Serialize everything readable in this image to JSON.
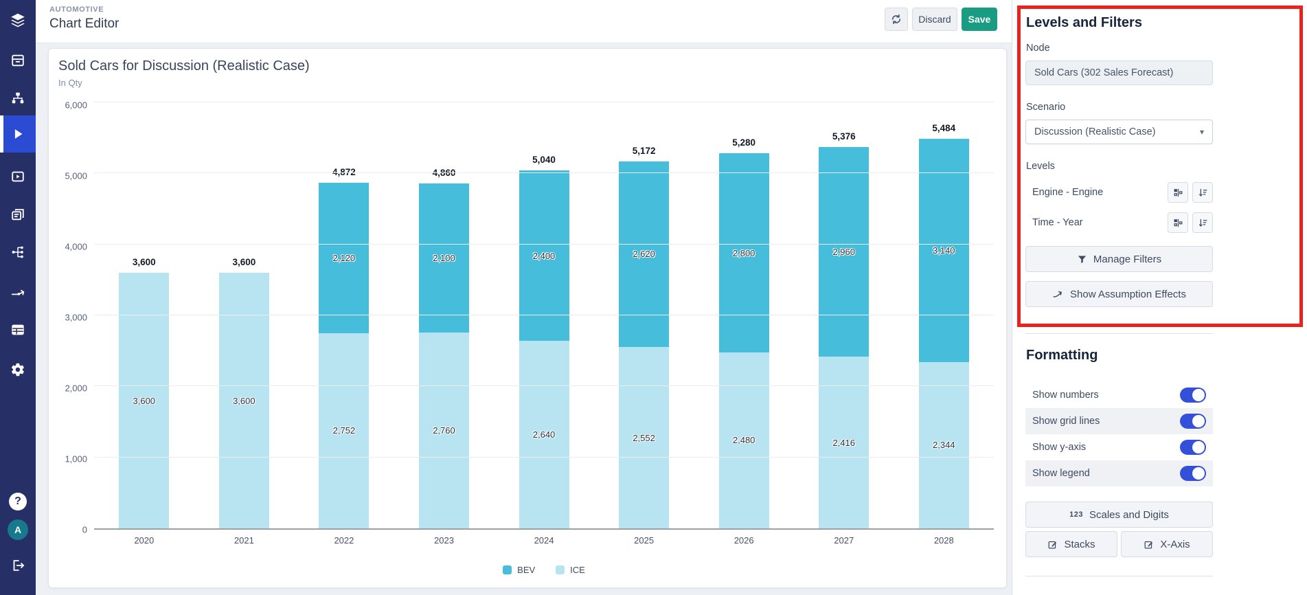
{
  "sidebar": {
    "icons": [
      "layers-logo",
      "archive",
      "sitemap",
      "play",
      "video",
      "slides",
      "network",
      "flow-arrow",
      "table",
      "settings",
      "help",
      "avatar",
      "logout"
    ],
    "avatar_initial": "A"
  },
  "header": {
    "kicker": "AUTOMOTIVE",
    "title": "Chart Editor",
    "discard_label": "Discard",
    "save_label": "Save"
  },
  "chart_data": {
    "type": "bar",
    "stacked": true,
    "title": "Sold Cars for Discussion (Realistic Case)",
    "subtitle": "In Qty",
    "categories": [
      "2020",
      "2021",
      "2022",
      "2023",
      "2024",
      "2025",
      "2026",
      "2027",
      "2028"
    ],
    "series": [
      {
        "name": "BEV",
        "color": "#46BDDA",
        "values": [
          0,
          0,
          2120,
          2100,
          2400,
          2620,
          2800,
          2960,
          3140
        ]
      },
      {
        "name": "ICE",
        "color": "#B8E4F2",
        "values": [
          3600,
          3600,
          2752,
          2760,
          2640,
          2552,
          2480,
          2416,
          2344
        ]
      }
    ],
    "totals": [
      3600,
      3600,
      4872,
      4860,
      5040,
      5172,
      5280,
      5376,
      5484
    ],
    "ylim": [
      0,
      6000
    ],
    "ytick_step": 1000,
    "grid": true,
    "show_numbers": true,
    "legend_position": "bottom"
  },
  "panel": {
    "levels_and_filters": {
      "heading": "Levels and Filters",
      "node_label": "Node",
      "node_value": "Sold Cars (302 Sales Forecast)",
      "scenario_label": "Scenario",
      "scenario_value": "Discussion (Realistic Case)",
      "levels_label": "Levels",
      "levels": [
        {
          "name": "Engine - Engine"
        },
        {
          "name": "Time - Year"
        }
      ],
      "manage_filters_label": "Manage Filters",
      "show_assumption_effects_label": "Show Assumption Effects"
    },
    "formatting": {
      "heading": "Formatting",
      "toggles": [
        {
          "label": "Show numbers",
          "on": true
        },
        {
          "label": "Show grid lines",
          "on": true
        },
        {
          "label": "Show y-axis",
          "on": true
        },
        {
          "label": "Show legend",
          "on": true
        }
      ],
      "scales_icon_text": "123",
      "scales_button": "Scales and Digits",
      "stacks_button": "Stacks",
      "xaxis_button": "X-Axis"
    }
  },
  "colors": {
    "bev": "#46BDDA",
    "ice": "#B8E4F2",
    "save_accent": "#199C82",
    "toggle_on": "#3450D8",
    "sidebar": "#262F66",
    "sidebar_active": "#2B4BD3",
    "highlight": "#E8221F"
  }
}
